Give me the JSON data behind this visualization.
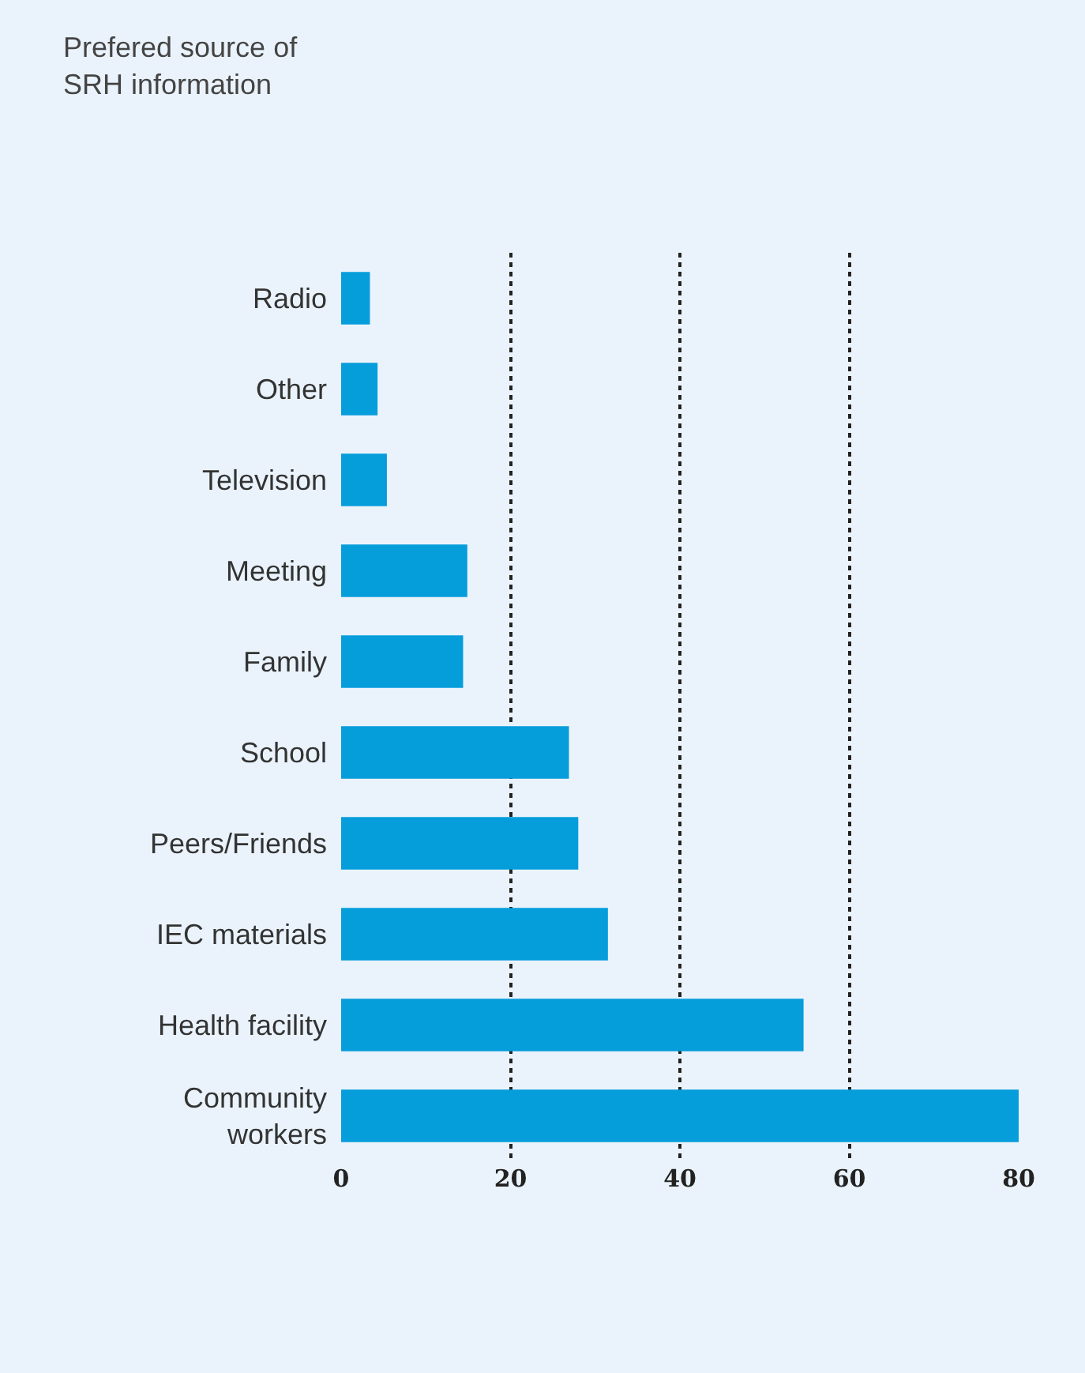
{
  "chart_data": {
    "type": "bar",
    "orientation": "horizontal",
    "title": "Prefered source of\nSRH information",
    "categories": [
      "Radio",
      "Other",
      "Television",
      "Meeting",
      "Family",
      "School",
      "Peers/Friends",
      "IEC materials",
      "Health facility",
      "Community\nworkers"
    ],
    "values": [
      3.4,
      4.3,
      5.4,
      14.9,
      14.4,
      26.9,
      28,
      31.5,
      54.6,
      80
    ],
    "color": "#069ddb",
    "xlim": [
      0,
      80
    ],
    "xticks": [
      0,
      20,
      40,
      60,
      80
    ],
    "grid": "x",
    "legend": false
  }
}
